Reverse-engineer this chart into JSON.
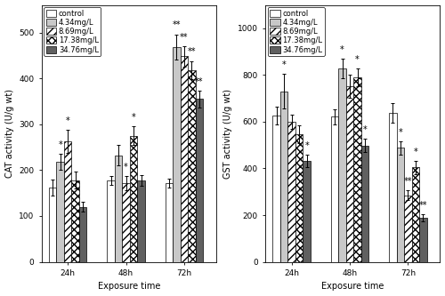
{
  "cat_data": {
    "groups": [
      "24h",
      "48h",
      "72h"
    ],
    "series": [
      {
        "label": "control",
        "values": [
          162,
          178,
          172
        ],
        "errors": [
          18,
          10,
          10
        ]
      },
      {
        "label": "4.34mg/L",
        "values": [
          218,
          232,
          468
        ],
        "errors": [
          18,
          22,
          28
        ]
      },
      {
        "label": "8.69mg/L",
        "values": [
          263,
          172,
          448
        ],
        "errors": [
          25,
          15,
          22
        ]
      },
      {
        "label": "17.38mg/L",
        "values": [
          178,
          275,
          418
        ],
        "errors": [
          18,
          20,
          20
        ]
      },
      {
        "label": "34.76mg/L",
        "values": [
          120,
          178,
          355
        ],
        "errors": [
          10,
          12,
          18
        ]
      }
    ],
    "ylabel": "CAT activity (U/g wt)",
    "xlabel": "Exposure time",
    "ylim": [
      0,
      560
    ],
    "yticks": [
      0,
      100,
      200,
      300,
      400,
      500
    ],
    "sig": {
      "24h": [
        false,
        true,
        true,
        false,
        false
      ],
      "48h": [
        false,
        false,
        true,
        true,
        false
      ],
      "72h": [
        false,
        true,
        true,
        true,
        true
      ]
    },
    "dbl": {
      "24h": [
        false,
        false,
        false,
        false,
        false
      ],
      "48h": [
        false,
        false,
        false,
        false,
        false
      ],
      "72h": [
        false,
        true,
        true,
        true,
        true
      ]
    }
  },
  "gst_data": {
    "groups": [
      "24h",
      "48h",
      "72h"
    ],
    "series": [
      {
        "label": "control",
        "values": [
          625,
          622,
          638
        ],
        "errors": [
          38,
          32,
          42
        ]
      },
      {
        "label": "4.34mg/L",
        "values": [
          730,
          828,
          488
        ],
        "errors": [
          75,
          42,
          28
        ]
      },
      {
        "label": "8.69mg/L",
        "values": [
          600,
          752,
          285
        ],
        "errors": [
          32,
          48,
          22
        ]
      },
      {
        "label": "17.38mg/L",
        "values": [
          548,
          790,
          405
        ],
        "errors": [
          38,
          38,
          28
        ]
      },
      {
        "label": "34.76mg/L",
        "values": [
          432,
          498,
          188
        ],
        "errors": [
          25,
          28,
          15
        ]
      }
    ],
    "ylabel": "GST activity (U/g wt)",
    "xlabel": "Exposure time",
    "ylim": [
      0,
      1100
    ],
    "yticks": [
      0,
      200,
      400,
      600,
      800,
      1000
    ],
    "sig": {
      "24h": [
        false,
        true,
        false,
        false,
        true
      ],
      "48h": [
        false,
        true,
        false,
        true,
        true
      ],
      "72h": [
        false,
        true,
        true,
        true,
        true
      ]
    },
    "dbl": {
      "24h": [
        false,
        false,
        false,
        false,
        false
      ],
      "48h": [
        false,
        false,
        false,
        false,
        false
      ],
      "72h": [
        false,
        false,
        true,
        false,
        true
      ]
    }
  },
  "bar_styles": [
    {
      "facecolor": "white",
      "hatch": "",
      "edgecolor": "black"
    },
    {
      "facecolor": "#c8c8c8",
      "hatch": "",
      "edgecolor": "black"
    },
    {
      "facecolor": "white",
      "hatch": "////",
      "edgecolor": "black"
    },
    {
      "facecolor": "white",
      "hatch": "xxxx",
      "edgecolor": "black"
    },
    {
      "facecolor": "#606060",
      "hatch": "",
      "edgecolor": "black"
    }
  ],
  "bar_width": 0.13,
  "font_size": 6.5,
  "legend_font_size": 6,
  "star_font_size": 7,
  "tick_label_size": 6.5,
  "axis_label_size": 7
}
